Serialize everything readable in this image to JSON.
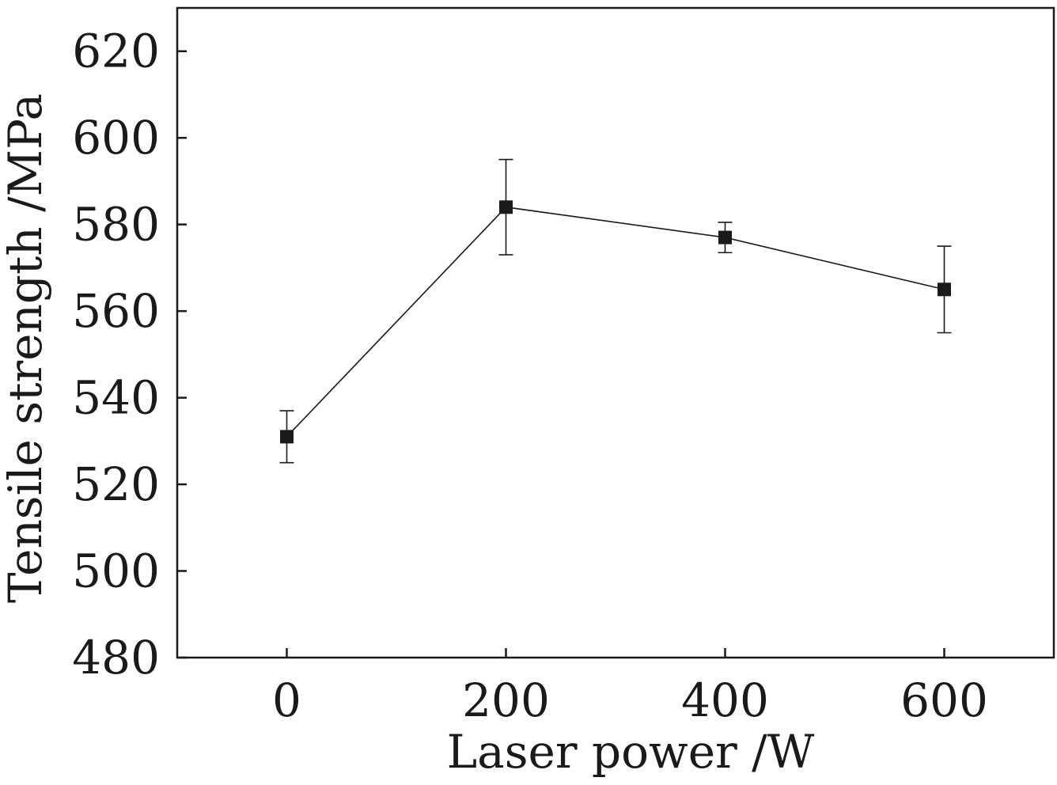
{
  "chart_data": {
    "type": "line",
    "title": "",
    "xlabel": "Laser power /W",
    "ylabel": "Tensile strength /MPa",
    "xlim": [
      -100,
      700
    ],
    "ylim": [
      480,
      630
    ],
    "xticks": [
      0,
      200,
      400,
      600
    ],
    "yticks": [
      480,
      500,
      520,
      540,
      560,
      580,
      600,
      620
    ],
    "grid": false,
    "series": [
      {
        "name": "Tensile strength",
        "marker": "square",
        "color": "#1a1a1a",
        "x": [
          0,
          200,
          400,
          600
        ],
        "y": [
          531,
          584,
          577,
          565
        ],
        "error": [
          6,
          11,
          3.5,
          10
        ]
      }
    ]
  }
}
